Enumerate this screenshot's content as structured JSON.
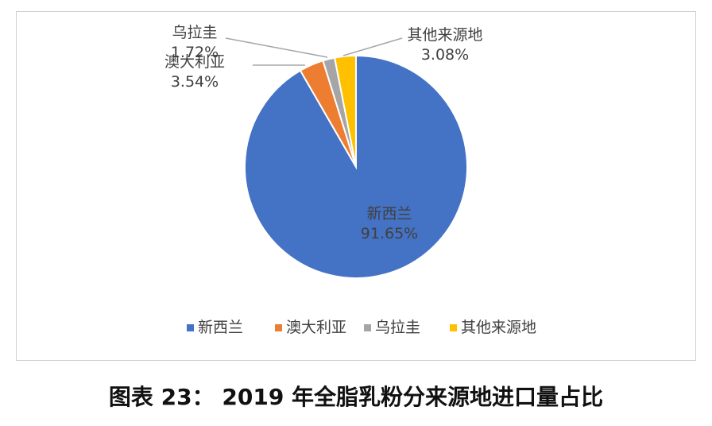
{
  "chart_data": {
    "type": "pie",
    "categories": [
      "新西兰",
      "澳大利亚",
      "乌拉圭",
      "其他来源地"
    ],
    "values": [
      91.65,
      3.54,
      1.72,
      3.08
    ],
    "value_labels": [
      "91.65%",
      "3.54%",
      "1.72%",
      "3.08%"
    ],
    "colors": [
      "#4472C4",
      "#ED7D31",
      "#A5A5A5",
      "#FFC000"
    ],
    "legend": {
      "position": "bottom",
      "entries": [
        "新西兰",
        "澳大利亚",
        "乌拉圭",
        "其他来源地"
      ]
    }
  },
  "caption": "图表 23：  2019 年全脂乳粉分来源地进口量占比"
}
